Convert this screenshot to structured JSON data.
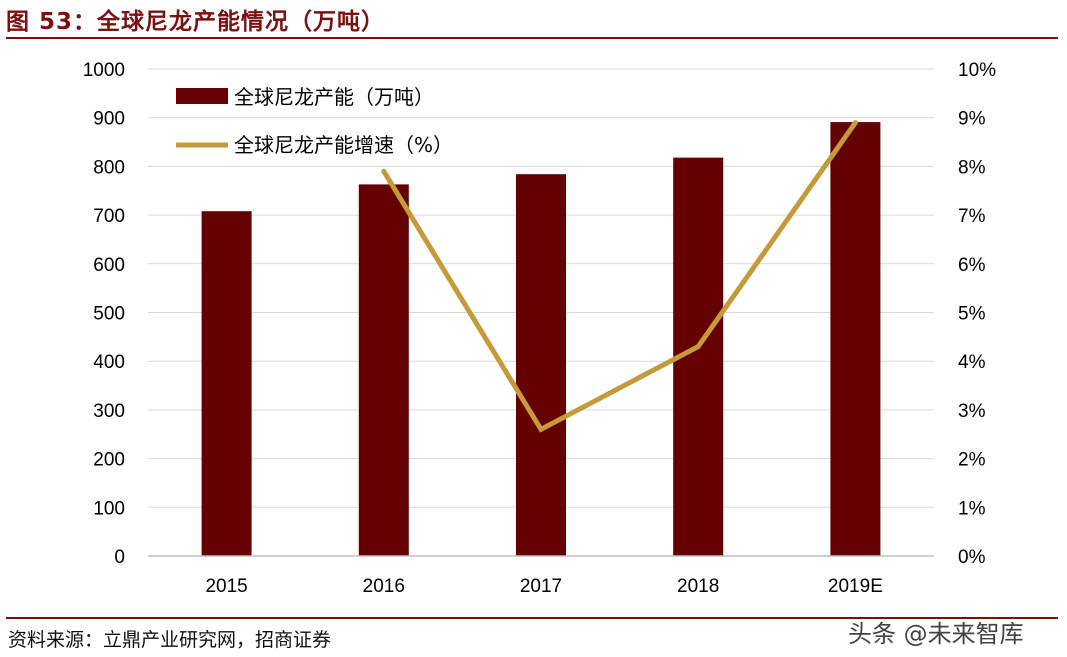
{
  "header": {
    "title": "图 53：全球尼龙产能情况（万吨）"
  },
  "footer": {
    "source": "资料来源：立鼎产业研究网，招商证券",
    "watermark": "头条 @未来智库"
  },
  "colors": {
    "bar": "#640000",
    "line": "#c49a3a",
    "title": "#7a1010",
    "grid": "#d9d9d9"
  },
  "chart_data": {
    "type": "bar",
    "categories": [
      "2015",
      "2016",
      "2017",
      "2018",
      "2019E"
    ],
    "series": [
      {
        "name": "全球尼龙产能（万吨）",
        "type": "bar",
        "axis": "left",
        "values": [
          708,
          763,
          784,
          818,
          891
        ]
      },
      {
        "name": "全球尼龙产能增速（%）",
        "type": "line",
        "axis": "right",
        "values": [
          null,
          7.9,
          2.6,
          4.3,
          8.9
        ]
      }
    ],
    "y_left": {
      "range": [
        0,
        1000
      ],
      "ticks": [
        "0",
        "100",
        "200",
        "300",
        "400",
        "500",
        "600",
        "700",
        "800",
        "900",
        "1000"
      ]
    },
    "y_right": {
      "range": [
        0,
        10
      ],
      "ticks": [
        "0%",
        "1%",
        "2%",
        "3%",
        "4%",
        "5%",
        "6%",
        "7%",
        "8%",
        "9%",
        "10%"
      ]
    },
    "grid": true,
    "legend_position": "top-left"
  }
}
